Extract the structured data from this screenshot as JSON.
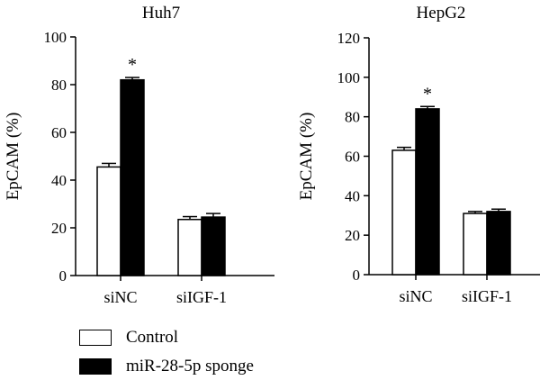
{
  "legend": [
    {
      "label": "Control",
      "color": "#ffffff"
    },
    {
      "label": "miR-28-5p sponge",
      "color": "#000000"
    }
  ],
  "chart_data": [
    {
      "type": "bar",
      "title": "Huh7",
      "ylabel": "EpCAM (%)",
      "xlabel": "",
      "ylim": [
        0,
        100
      ],
      "yticks": [
        0,
        20,
        40,
        60,
        80,
        100
      ],
      "categories": [
        "siNC",
        "siIGF-1"
      ],
      "series": [
        {
          "name": "Control",
          "color": "#ffffff",
          "values": [
            45.5,
            23.5
          ],
          "errors": [
            1.5,
            1.2
          ]
        },
        {
          "name": "miR-28-5p sponge",
          "color": "#000000",
          "values": [
            82,
            24.5
          ],
          "errors": [
            1.0,
            1.5
          ]
        }
      ],
      "annotations": [
        {
          "category": "siNC",
          "series": "miR-28-5p sponge",
          "text": "*"
        }
      ]
    },
    {
      "type": "bar",
      "title": "HepG2",
      "ylabel": "EpCAM (%)",
      "xlabel": "",
      "ylim": [
        0,
        120
      ],
      "yticks": [
        0,
        20,
        40,
        60,
        80,
        100,
        120
      ],
      "categories": [
        "siNC",
        "siIGF-1"
      ],
      "series": [
        {
          "name": "Control",
          "color": "#ffffff",
          "values": [
            63,
            31
          ],
          "errors": [
            1.5,
            1.0
          ]
        },
        {
          "name": "miR-28-5p sponge",
          "color": "#000000",
          "values": [
            84,
            32
          ],
          "errors": [
            1.2,
            1.2
          ]
        }
      ],
      "annotations": [
        {
          "category": "siNC",
          "series": "miR-28-5p sponge",
          "text": "*"
        }
      ]
    }
  ]
}
